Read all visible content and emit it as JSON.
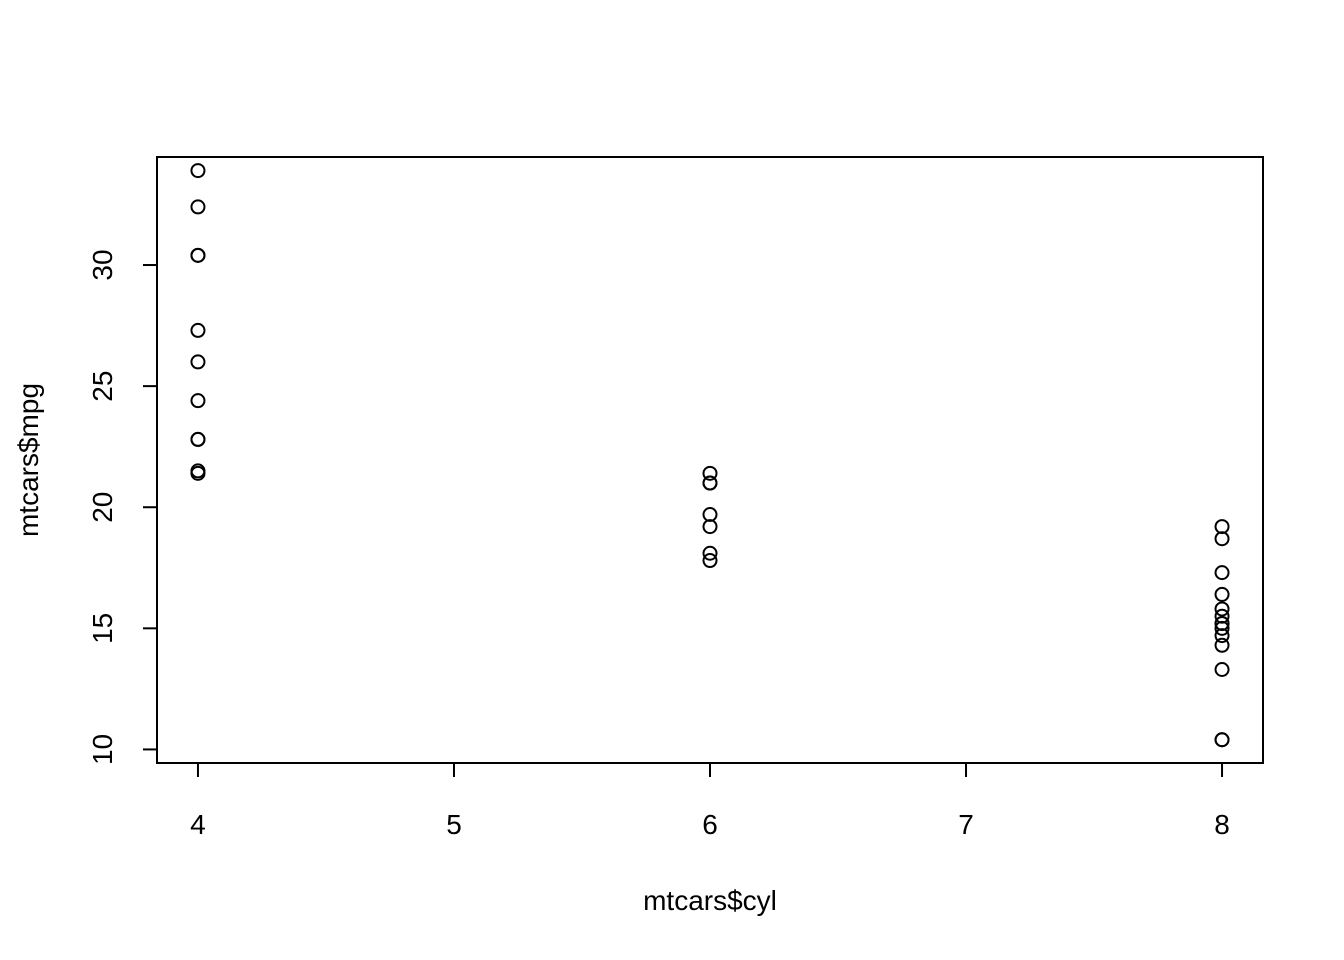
{
  "chart_data": {
    "type": "scatter",
    "title": "",
    "xlabel": "mtcars$cyl",
    "ylabel": "mtcars$mpg",
    "xlim": [
      3.84,
      8.16
    ],
    "ylim": [
      9.44,
      34.46
    ],
    "x_ticks": [
      4,
      5,
      6,
      7,
      8
    ],
    "y_ticks": [
      10,
      15,
      20,
      25,
      30
    ],
    "grid": false,
    "legend": "none",
    "marker": "open-circle",
    "colors": {
      "points": "#000000",
      "axes": "#000000",
      "background": "#ffffff"
    },
    "points": [
      {
        "x": 6,
        "y": 21.0
      },
      {
        "x": 6,
        "y": 21.0
      },
      {
        "x": 4,
        "y": 22.8
      },
      {
        "x": 6,
        "y": 21.4
      },
      {
        "x": 8,
        "y": 18.7
      },
      {
        "x": 6,
        "y": 18.1
      },
      {
        "x": 8,
        "y": 14.3
      },
      {
        "x": 4,
        "y": 24.4
      },
      {
        "x": 4,
        "y": 22.8
      },
      {
        "x": 6,
        "y": 19.2
      },
      {
        "x": 6,
        "y": 17.8
      },
      {
        "x": 8,
        "y": 16.4
      },
      {
        "x": 8,
        "y": 17.3
      },
      {
        "x": 8,
        "y": 15.2
      },
      {
        "x": 8,
        "y": 10.4
      },
      {
        "x": 8,
        "y": 10.4
      },
      {
        "x": 8,
        "y": 14.7
      },
      {
        "x": 4,
        "y": 32.4
      },
      {
        "x": 4,
        "y": 30.4
      },
      {
        "x": 4,
        "y": 33.9
      },
      {
        "x": 4,
        "y": 21.5
      },
      {
        "x": 8,
        "y": 15.5
      },
      {
        "x": 8,
        "y": 15.2
      },
      {
        "x": 8,
        "y": 13.3
      },
      {
        "x": 8,
        "y": 19.2
      },
      {
        "x": 4,
        "y": 27.3
      },
      {
        "x": 4,
        "y": 26.0
      },
      {
        "x": 4,
        "y": 30.4
      },
      {
        "x": 8,
        "y": 15.8
      },
      {
        "x": 6,
        "y": 19.7
      },
      {
        "x": 8,
        "y": 15.0
      },
      {
        "x": 4,
        "y": 21.4
      }
    ]
  }
}
